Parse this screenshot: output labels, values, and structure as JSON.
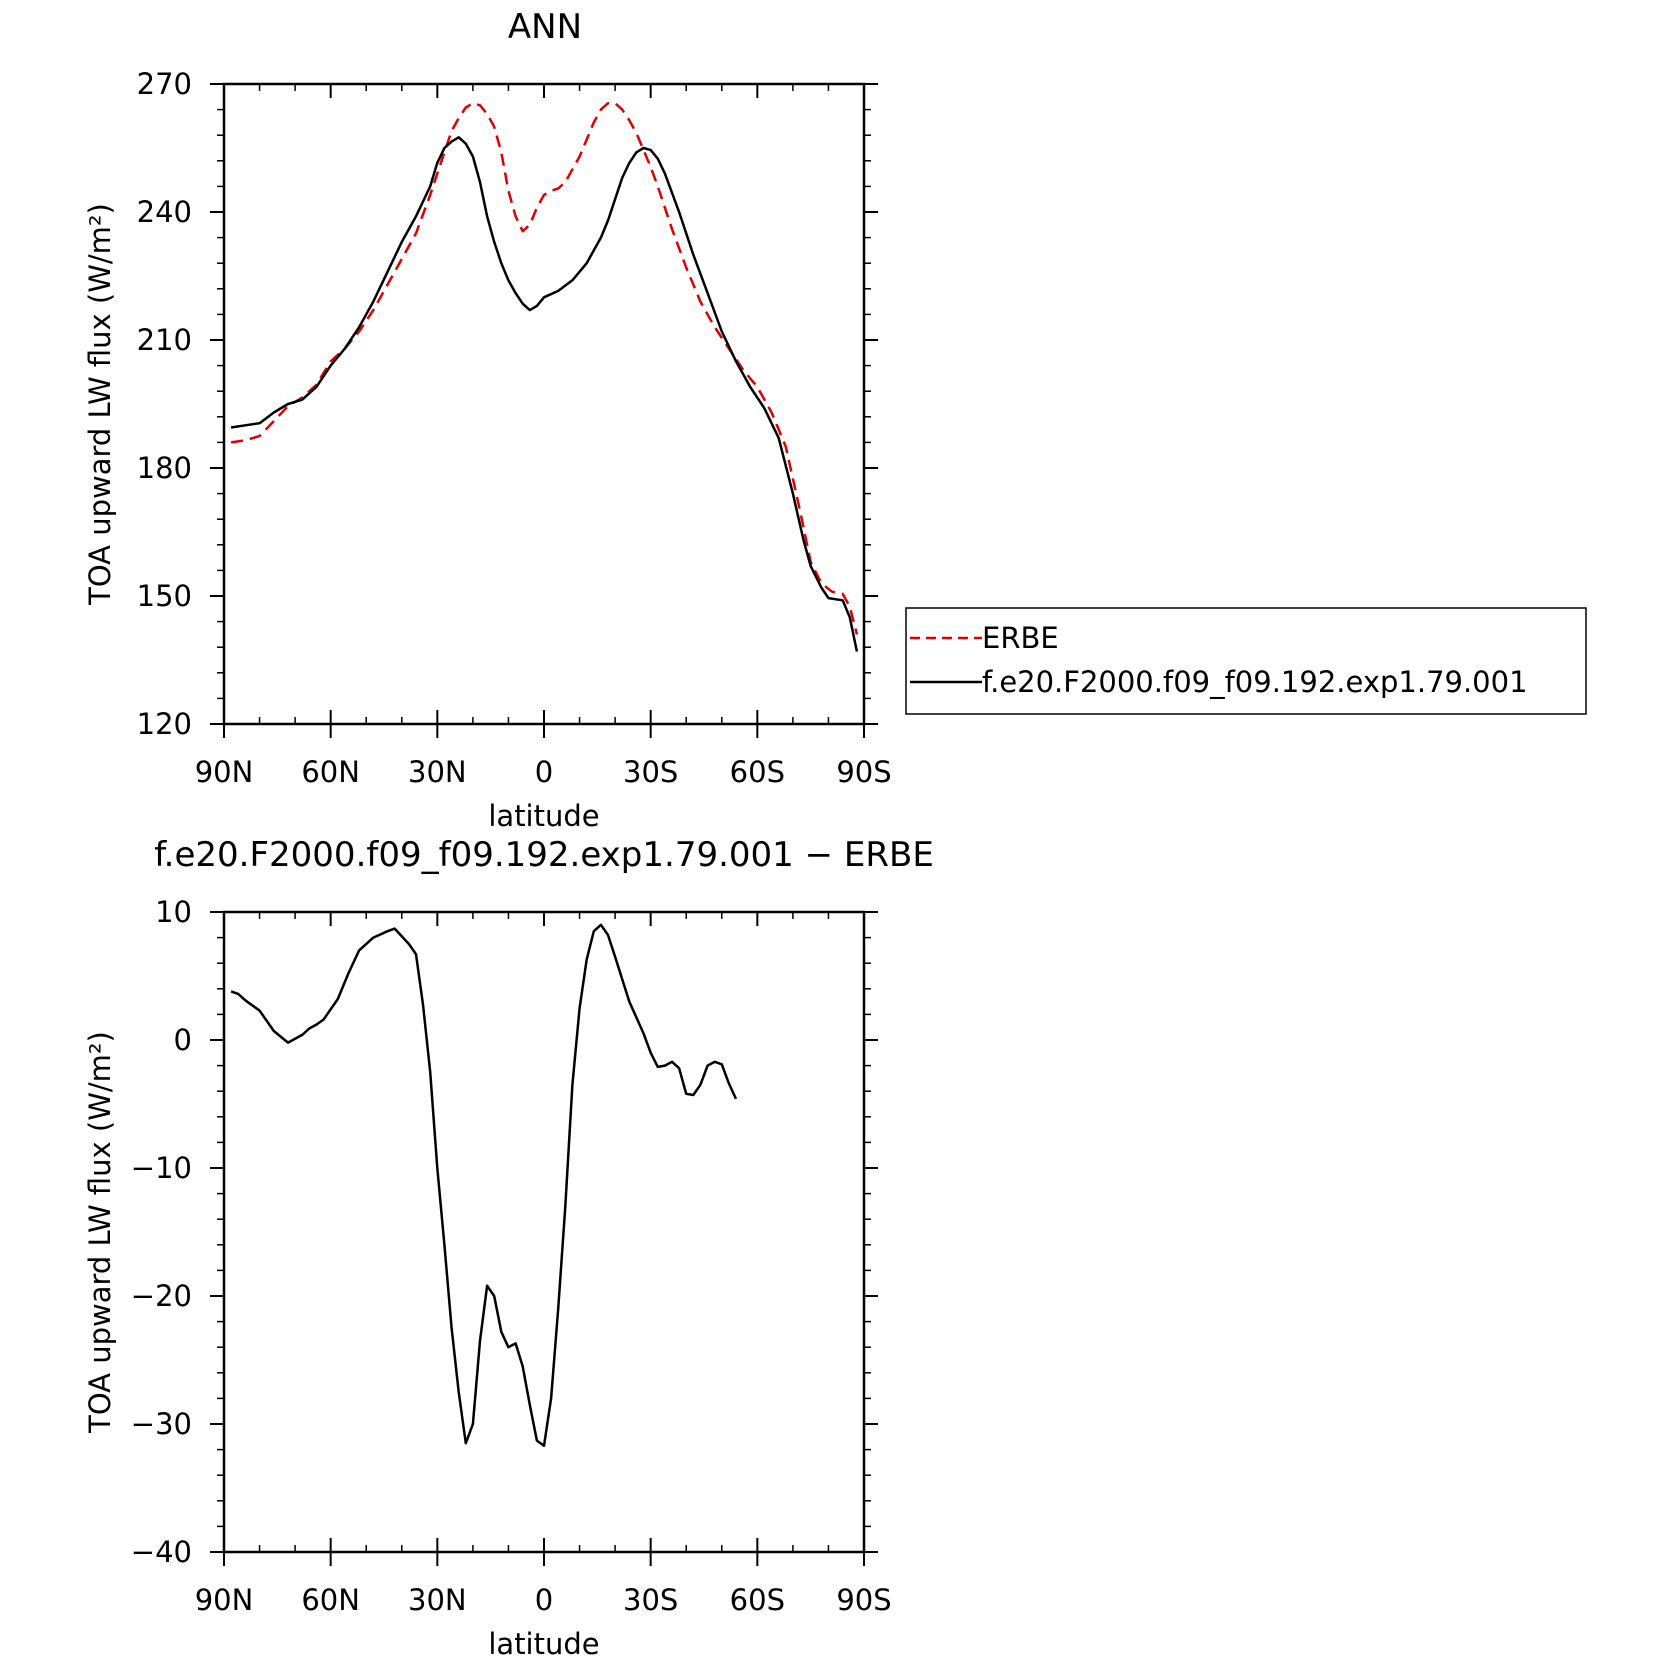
{
  "chart_data": [
    {
      "type": "line",
      "title": "ANN",
      "xlabel": "latitude",
      "ylabel": "TOA upward LW flux (W/m²)",
      "xlim": [
        90,
        -90
      ],
      "ylim": [
        120,
        270
      ],
      "x_ticks": [
        {
          "value": 90,
          "label": "90N"
        },
        {
          "value": 60,
          "label": "60N"
        },
        {
          "value": 30,
          "label": "30N"
        },
        {
          "value": 0,
          "label": "0"
        },
        {
          "value": -30,
          "label": "30S"
        },
        {
          "value": -60,
          "label": "60S"
        },
        {
          "value": -90,
          "label": "90S"
        }
      ],
      "y_ticks": [
        120,
        150,
        180,
        210,
        240,
        270
      ],
      "legend": "right",
      "series": [
        {
          "name": "ERBE",
          "color": "#e00000",
          "style": "dashed",
          "points": [
            [
              88,
              186
            ],
            [
              84,
              186.5
            ],
            [
              80,
              187.5
            ],
            [
              76,
              191
            ],
            [
              72,
              194.5
            ],
            [
              68,
              196.5
            ],
            [
              64,
              199.5
            ],
            [
              60,
              205
            ],
            [
              56,
              208
            ],
            [
              52,
              212
            ],
            [
              48,
              217
            ],
            [
              44,
              223
            ],
            [
              40,
              229
            ],
            [
              36,
              235
            ],
            [
              32,
              244
            ],
            [
              28,
              254
            ],
            [
              26,
              259
            ],
            [
              24,
              262
            ],
            [
              22,
              264.5
            ],
            [
              20,
              265.5
            ],
            [
              18,
              265
            ],
            [
              16,
              263
            ],
            [
              14,
              260
            ],
            [
              12,
              254
            ],
            [
              10,
              245
            ],
            [
              8,
              239
            ],
            [
              6,
              235.5
            ],
            [
              4,
              237
            ],
            [
              2,
              241
            ],
            [
              0,
              244
            ],
            [
              -2,
              245
            ],
            [
              -4,
              245.5
            ],
            [
              -6,
              247
            ],
            [
              -8,
              250
            ],
            [
              -10,
              253
            ],
            [
              -12,
              257
            ],
            [
              -14,
              261
            ],
            [
              -16,
              264
            ],
            [
              -18,
              265.5
            ],
            [
              -20,
              265.5
            ],
            [
              -22,
              264
            ],
            [
              -24,
              261.5
            ],
            [
              -26,
              258.5
            ],
            [
              -28,
              254.5
            ],
            [
              -30,
              250.5
            ],
            [
              -32,
              246
            ],
            [
              -36,
              236
            ],
            [
              -40,
              227
            ],
            [
              -44,
              219
            ],
            [
              -48,
              213
            ],
            [
              -52,
              208
            ],
            [
              -56,
              203
            ],
            [
              -60,
              199
            ],
            [
              -64,
              193
            ],
            [
              -68,
              185
            ],
            [
              -72,
              170
            ],
            [
              -75,
              158
            ],
            [
              -78,
              153
            ],
            [
              -81,
              151
            ],
            [
              -84,
              150.5
            ],
            [
              -86,
              147.5
            ],
            [
              -88,
              141
            ]
          ]
        },
        {
          "name": "f.e20.F2000.f09_f09.192.exp1.79.001",
          "color": "#000000",
          "style": "solid",
          "points": [
            [
              88,
              189.5
            ],
            [
              84,
              190
            ],
            [
              80,
              190.5
            ],
            [
              76,
              193
            ],
            [
              72,
              195
            ],
            [
              68,
              196
            ],
            [
              64,
              199
            ],
            [
              60,
              204
            ],
            [
              56,
              208
            ],
            [
              52,
              213
            ],
            [
              48,
              219
            ],
            [
              44,
              226
            ],
            [
              40,
              233
            ],
            [
              36,
              239
            ],
            [
              32,
              246
            ],
            [
              30,
              251.5
            ],
            [
              28,
              255
            ],
            [
              26,
              256.5
            ],
            [
              24,
              257.5
            ],
            [
              22,
              256
            ],
            [
              20,
              253
            ],
            [
              18,
              247
            ],
            [
              16,
              239
            ],
            [
              14,
              233
            ],
            [
              12,
              228
            ],
            [
              10,
              224
            ],
            [
              8,
              221
            ],
            [
              6,
              218.5
            ],
            [
              4,
              217
            ],
            [
              2,
              218
            ],
            [
              0,
              220
            ],
            [
              -4,
              221.5
            ],
            [
              -8,
              224
            ],
            [
              -12,
              228
            ],
            [
              -16,
              234
            ],
            [
              -18,
              238
            ],
            [
              -20,
              243
            ],
            [
              -22,
              248
            ],
            [
              -24,
              251.5
            ],
            [
              -26,
              254
            ],
            [
              -28,
              255
            ],
            [
              -30,
              254.5
            ],
            [
              -32,
              252.5
            ],
            [
              -34,
              249
            ],
            [
              -38,
              240
            ],
            [
              -42,
              230
            ],
            [
              -46,
              221
            ],
            [
              -50,
              212
            ],
            [
              -54,
              205
            ],
            [
              -58,
              199
            ],
            [
              -62,
              194
            ],
            [
              -66,
              187
            ],
            [
              -70,
              174
            ],
            [
              -73,
              163
            ],
            [
              -75,
              157
            ],
            [
              -78,
              152
            ],
            [
              -80,
              149.5
            ],
            [
              -84,
              149
            ],
            [
              -86,
              145
            ],
            [
              -88,
              137
            ]
          ]
        }
      ]
    },
    {
      "type": "line",
      "title": "f.e20.F2000.f09_f09.192.exp1.79.001 − ERBE",
      "xlabel": "latitude",
      "ylabel": "TOA upward LW flux (W/m²)",
      "xlim": [
        90,
        -90
      ],
      "ylim": [
        -40,
        10
      ],
      "x_ticks": [
        {
          "value": 90,
          "label": "90N"
        },
        {
          "value": 60,
          "label": "60N"
        },
        {
          "value": 30,
          "label": "30N"
        },
        {
          "value": 0,
          "label": "0"
        },
        {
          "value": -30,
          "label": "30S"
        },
        {
          "value": -60,
          "label": "60S"
        },
        {
          "value": -90,
          "label": "90S"
        }
      ],
      "y_ticks": [
        -40,
        -30,
        -20,
        -10,
        0,
        10
      ],
      "y_tick_labels": [
        "−40",
        "−30",
        "−20",
        "−10",
        "0",
        "10"
      ],
      "series": [
        {
          "color": "#000000",
          "style": "solid",
          "points": [
            [
              88,
              3.8
            ],
            [
              86,
              3.6
            ],
            [
              84,
              3.1
            ],
            [
              80,
              2.3
            ],
            [
              76,
              0.7
            ],
            [
              72,
              -0.2
            ],
            [
              68,
              0.4
            ],
            [
              66,
              0.9
            ],
            [
              64,
              1.2
            ],
            [
              62,
              1.6
            ],
            [
              58,
              3.2
            ],
            [
              55,
              5.2
            ],
            [
              52,
              7
            ],
            [
              48,
              8
            ],
            [
              44,
              8.5
            ],
            [
              42,
              8.7
            ],
            [
              38,
              7.5
            ],
            [
              36,
              6.7
            ],
            [
              34,
              2.7
            ],
            [
              32,
              -2.5
            ],
            [
              30,
              -10
            ],
            [
              28,
              -16
            ],
            [
              26,
              -22.5
            ],
            [
              24,
              -27.5
            ],
            [
              22,
              -31.5
            ],
            [
              20,
              -30
            ],
            [
              18,
              -23.5
            ],
            [
              16,
              -19.2
            ],
            [
              14,
              -20
            ],
            [
              12,
              -22.8
            ],
            [
              10,
              -24
            ],
            [
              8,
              -23.7
            ],
            [
              6,
              -25.5
            ],
            [
              4,
              -28.5
            ],
            [
              2,
              -31.3
            ],
            [
              0,
              -31.7
            ],
            [
              -2,
              -28
            ],
            [
              -4,
              -21
            ],
            [
              -6,
              -13
            ],
            [
              -8,
              -3.5
            ],
            [
              -10,
              2.5
            ],
            [
              -12,
              6.3
            ],
            [
              -14,
              8.5
            ],
            [
              -16,
              9
            ],
            [
              -18,
              8.2
            ],
            [
              -20,
              6.5
            ],
            [
              -24,
              3
            ],
            [
              -28,
              0.5
            ],
            [
              -30,
              -1
            ],
            [
              -32,
              -2.1
            ],
            [
              -34,
              -2
            ],
            [
              -36,
              -1.7
            ],
            [
              -38,
              -2.2
            ],
            [
              -40,
              -4.2
            ],
            [
              -42,
              -4.3
            ],
            [
              -44,
              -3.5
            ],
            [
              -46,
              -2
            ],
            [
              -48,
              -1.7
            ],
            [
              -50,
              -1.9
            ],
            [
              -52,
              -3.4
            ],
            [
              -54,
              -4.6
            ]
          ]
        }
      ]
    }
  ]
}
